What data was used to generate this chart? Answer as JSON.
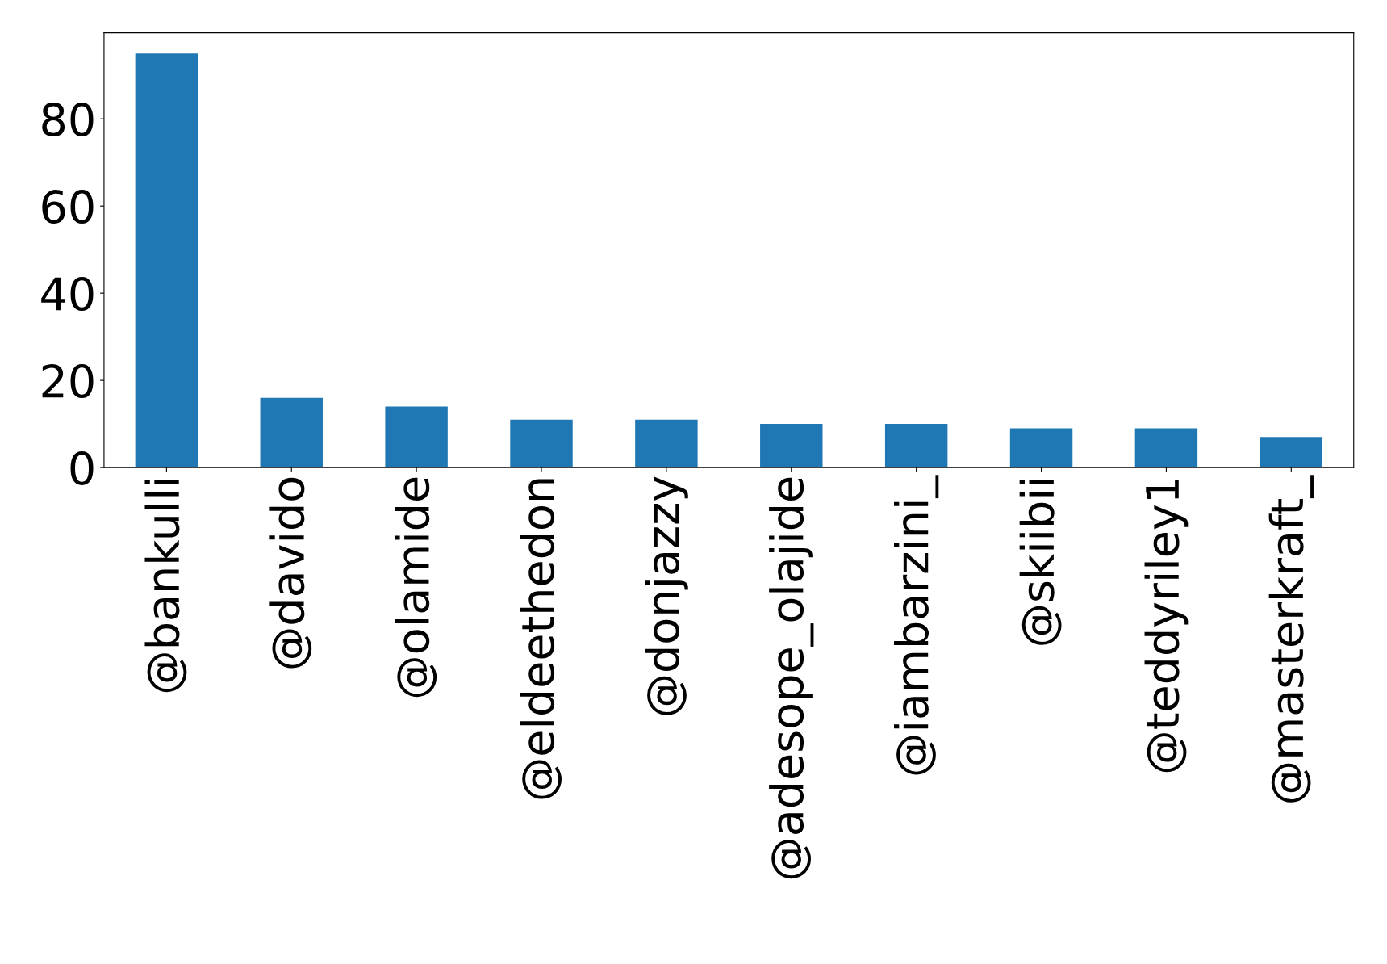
{
  "chart_data": {
    "type": "bar",
    "categories": [
      "@bankulli",
      "@davido",
      "@olamide",
      "@eldeethedon",
      "@donjazzy",
      "@adesope_olajide",
      "@iambarzini_",
      "@skiibii",
      "@teddyriley1",
      "@masterkraft_"
    ],
    "values": [
      95,
      16,
      14,
      11,
      11,
      10,
      10,
      9,
      9,
      7
    ],
    "color": "#1f77b4",
    "ylim": [
      0,
      99.75
    ],
    "yticks": [
      0,
      20,
      40,
      60,
      80
    ],
    "grid": false,
    "legend": false
  }
}
